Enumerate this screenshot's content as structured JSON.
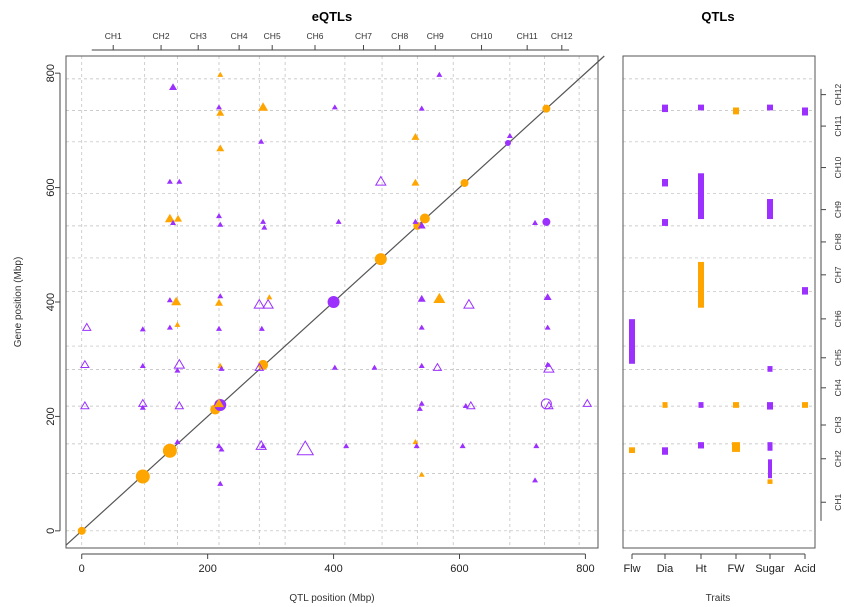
{
  "chart_data": [
    {
      "type": "scatter",
      "title": "eQTLs",
      "xlabel": "QTL position (Mbp)",
      "ylabel": "Gene position (Mbp)",
      "xlim": [
        -25,
        820
      ],
      "ylim": [
        -30,
        830
      ],
      "xticks": [
        "0",
        "200",
        "400",
        "600",
        "800"
      ],
      "yticks": [
        "0",
        "200",
        "400",
        "600",
        "800"
      ],
      "chromosomes": [
        "CH1",
        "CH2",
        "CH3",
        "CH4",
        "CH5",
        "CH6",
        "CH7",
        "CH8",
        "CH9",
        "CH10",
        "CH11",
        "CH12"
      ],
      "chrom_boundaries": [
        0,
        100,
        152,
        218,
        282,
        323,
        418,
        477,
        533,
        590,
        680,
        735,
        790
      ],
      "diagonal": true,
      "grid": true,
      "colors": {
        "purple": "#9b30ff",
        "orange": "#ffa500",
        "diagonal": "#555555",
        "grid": "#bbbbbb"
      },
      "points": [
        {
          "x": 0,
          "y": 0,
          "c": "orange",
          "s": "circle",
          "r": 4
        },
        {
          "x": 97,
          "y": 95,
          "c": "orange",
          "s": "circle",
          "r": 7
        },
        {
          "x": 140,
          "y": 140,
          "c": "orange",
          "s": "circle",
          "r": 7
        },
        {
          "x": 212,
          "y": 212,
          "c": "orange",
          "s": "circle",
          "r": 5
        },
        {
          "x": 220,
          "y": 220,
          "c": "purple",
          "s": "circle",
          "r": 6
        },
        {
          "x": 288,
          "y": 290,
          "c": "orange",
          "s": "circle",
          "r": 5
        },
        {
          "x": 400,
          "y": 400,
          "c": "purple",
          "s": "circle",
          "r": 6
        },
        {
          "x": 475,
          "y": 475,
          "c": "orange",
          "s": "circle",
          "r": 6
        },
        {
          "x": 533,
          "y": 533,
          "c": "orange",
          "s": "circle",
          "r": 4
        },
        {
          "x": 545,
          "y": 546,
          "c": "orange",
          "s": "circle",
          "r": 5
        },
        {
          "x": 608,
          "y": 608,
          "c": "orange",
          "s": "circle",
          "r": 4
        },
        {
          "x": 677,
          "y": 678,
          "c": "purple",
          "s": "circle",
          "r": 3
        },
        {
          "x": 738,
          "y": 738,
          "c": "orange",
          "s": "circle",
          "r": 4
        },
        {
          "x": 738,
          "y": 540,
          "c": "purple",
          "s": "circle",
          "r": 4
        },
        {
          "x": 145,
          "y": 775,
          "c": "purple",
          "s": "tri",
          "r": 4
        },
        {
          "x": 220,
          "y": 797,
          "c": "orange",
          "s": "tri",
          "r": 3
        },
        {
          "x": 568,
          "y": 797,
          "c": "purple",
          "s": "tri",
          "r": 3
        },
        {
          "x": 218,
          "y": 740,
          "c": "purple",
          "s": "tri",
          "r": 3
        },
        {
          "x": 220,
          "y": 730,
          "c": "orange",
          "s": "tri",
          "r": 4
        },
        {
          "x": 288,
          "y": 740,
          "c": "orange",
          "s": "tri",
          "r": 5
        },
        {
          "x": 402,
          "y": 740,
          "c": "purple",
          "s": "tri",
          "r": 3
        },
        {
          "x": 540,
          "y": 738,
          "c": "purple",
          "s": "tri",
          "r": 3
        },
        {
          "x": 530,
          "y": 688,
          "c": "orange",
          "s": "tri",
          "r": 4
        },
        {
          "x": 680,
          "y": 690,
          "c": "purple",
          "s": "tri",
          "r": 3
        },
        {
          "x": 220,
          "y": 668,
          "c": "orange",
          "s": "tri",
          "r": 4
        },
        {
          "x": 285,
          "y": 680,
          "c": "purple",
          "s": "tri",
          "r": 3
        },
        {
          "x": 140,
          "y": 610,
          "c": "purple",
          "s": "tri",
          "r": 3
        },
        {
          "x": 155,
          "y": 610,
          "c": "purple",
          "s": "tri",
          "r": 3
        },
        {
          "x": 475,
          "y": 610,
          "c": "purple",
          "s": "tri_open",
          "r": 5
        },
        {
          "x": 530,
          "y": 608,
          "c": "orange",
          "s": "tri",
          "r": 4
        },
        {
          "x": 140,
          "y": 545,
          "c": "orange",
          "s": "tri",
          "r": 5
        },
        {
          "x": 153,
          "y": 545,
          "c": "orange",
          "s": "tri",
          "r": 4
        },
        {
          "x": 145,
          "y": 538,
          "c": "purple",
          "s": "tri",
          "r": 3
        },
        {
          "x": 218,
          "y": 550,
          "c": "purple",
          "s": "tri",
          "r": 3
        },
        {
          "x": 220,
          "y": 535,
          "c": "purple",
          "s": "tri",
          "r": 3
        },
        {
          "x": 288,
          "y": 540,
          "c": "purple",
          "s": "tri",
          "r": 3
        },
        {
          "x": 290,
          "y": 530,
          "c": "purple",
          "s": "tri",
          "r": 3
        },
        {
          "x": 408,
          "y": 540,
          "c": "purple",
          "s": "tri",
          "r": 3
        },
        {
          "x": 530,
          "y": 540,
          "c": "purple",
          "s": "tri",
          "r": 3
        },
        {
          "x": 540,
          "y": 533,
          "c": "purple",
          "s": "tri",
          "r": 4
        },
        {
          "x": 720,
          "y": 538,
          "c": "purple",
          "s": "tri",
          "r": 3
        },
        {
          "x": 140,
          "y": 403,
          "c": "purple",
          "s": "tri",
          "r": 3
        },
        {
          "x": 150,
          "y": 400,
          "c": "orange",
          "s": "tri",
          "r": 5
        },
        {
          "x": 220,
          "y": 410,
          "c": "purple",
          "s": "tri",
          "r": 3
        },
        {
          "x": 218,
          "y": 398,
          "c": "orange",
          "s": "tri",
          "r": 4
        },
        {
          "x": 282,
          "y": 395,
          "c": "purple",
          "s": "tri_open",
          "r": 5
        },
        {
          "x": 296,
          "y": 395,
          "c": "purple",
          "s": "tri_open",
          "r": 5
        },
        {
          "x": 298,
          "y": 408,
          "c": "orange",
          "s": "tri",
          "r": 3
        },
        {
          "x": 540,
          "y": 405,
          "c": "purple",
          "s": "tri",
          "r": 4
        },
        {
          "x": 568,
          "y": 405,
          "c": "orange",
          "s": "tri",
          "r": 6
        },
        {
          "x": 615,
          "y": 395,
          "c": "purple",
          "s": "tri_open",
          "r": 5
        },
        {
          "x": 740,
          "y": 408,
          "c": "purple",
          "s": "tri",
          "r": 4
        },
        {
          "x": 8,
          "y": 355,
          "c": "purple",
          "s": "tri_open",
          "r": 4
        },
        {
          "x": 97,
          "y": 352,
          "c": "purple",
          "s": "tri",
          "r": 3
        },
        {
          "x": 140,
          "y": 355,
          "c": "purple",
          "s": "tri",
          "r": 3
        },
        {
          "x": 152,
          "y": 360,
          "c": "orange",
          "s": "tri",
          "r": 3
        },
        {
          "x": 218,
          "y": 353,
          "c": "purple",
          "s": "tri",
          "r": 3
        },
        {
          "x": 286,
          "y": 353,
          "c": "purple",
          "s": "tri",
          "r": 3
        },
        {
          "x": 540,
          "y": 355,
          "c": "purple",
          "s": "tri",
          "r": 3
        },
        {
          "x": 740,
          "y": 355,
          "c": "purple",
          "s": "tri",
          "r": 3
        },
        {
          "x": 5,
          "y": 290,
          "c": "purple",
          "s": "tri_open",
          "r": 4
        },
        {
          "x": 97,
          "y": 288,
          "c": "purple",
          "s": "tri",
          "r": 3
        },
        {
          "x": 155,
          "y": 290,
          "c": "purple",
          "s": "tri_open",
          "r": 5
        },
        {
          "x": 152,
          "y": 280,
          "c": "purple",
          "s": "tri",
          "r": 3
        },
        {
          "x": 220,
          "y": 288,
          "c": "orange",
          "s": "tri",
          "r": 3
        },
        {
          "x": 222,
          "y": 283,
          "c": "purple",
          "s": "tri",
          "r": 3
        },
        {
          "x": 282,
          "y": 285,
          "c": "purple",
          "s": "tri_open",
          "r": 4
        },
        {
          "x": 402,
          "y": 285,
          "c": "purple",
          "s": "tri",
          "r": 3
        },
        {
          "x": 465,
          "y": 285,
          "c": "purple",
          "s": "tri",
          "r": 3
        },
        {
          "x": 540,
          "y": 288,
          "c": "purple",
          "s": "tri",
          "r": 3
        },
        {
          "x": 565,
          "y": 285,
          "c": "purple",
          "s": "tri_open",
          "r": 4
        },
        {
          "x": 740,
          "y": 290,
          "c": "purple",
          "s": "tri",
          "r": 3
        },
        {
          "x": 742,
          "y": 283,
          "c": "purple",
          "s": "tri_open",
          "r": 5
        },
        {
          "x": 5,
          "y": 218,
          "c": "purple",
          "s": "tri_open",
          "r": 4
        },
        {
          "x": 97,
          "y": 222,
          "c": "purple",
          "s": "tri_open",
          "r": 4
        },
        {
          "x": 97,
          "y": 215,
          "c": "purple",
          "s": "tri",
          "r": 3
        },
        {
          "x": 155,
          "y": 218,
          "c": "purple",
          "s": "tri_open",
          "r": 4
        },
        {
          "x": 218,
          "y": 222,
          "c": "orange",
          "s": "tri",
          "r": 5
        },
        {
          "x": 540,
          "y": 222,
          "c": "purple",
          "s": "tri",
          "r": 3
        },
        {
          "x": 537,
          "y": 213,
          "c": "purple",
          "s": "tri",
          "r": 3
        },
        {
          "x": 610,
          "y": 218,
          "c": "purple",
          "s": "tri",
          "r": 3
        },
        {
          "x": 618,
          "y": 218,
          "c": "purple",
          "s": "tri_open",
          "r": 4
        },
        {
          "x": 738,
          "y": 222,
          "c": "purple",
          "s": "circle_open",
          "r": 5
        },
        {
          "x": 742,
          "y": 218,
          "c": "purple",
          "s": "tri_open",
          "r": 4
        },
        {
          "x": 803,
          "y": 222,
          "c": "purple",
          "s": "tri_open",
          "r": 4
        },
        {
          "x": 152,
          "y": 155,
          "c": "purple",
          "s": "tri",
          "r": 3
        },
        {
          "x": 218,
          "y": 148,
          "c": "purple",
          "s": "tri",
          "r": 3
        },
        {
          "x": 222,
          "y": 142,
          "c": "purple",
          "s": "tri",
          "r": 3
        },
        {
          "x": 285,
          "y": 148,
          "c": "purple",
          "s": "tri_open",
          "r": 5
        },
        {
          "x": 288,
          "y": 148,
          "c": "purple",
          "s": "tri",
          "r": 3
        },
        {
          "x": 355,
          "y": 142,
          "c": "purple",
          "s": "tri_open",
          "r": 8
        },
        {
          "x": 420,
          "y": 148,
          "c": "purple",
          "s": "tri",
          "r": 3
        },
        {
          "x": 530,
          "y": 155,
          "c": "orange",
          "s": "tri",
          "r": 3
        },
        {
          "x": 532,
          "y": 148,
          "c": "purple",
          "s": "tri",
          "r": 3
        },
        {
          "x": 605,
          "y": 148,
          "c": "purple",
          "s": "tri",
          "r": 3
        },
        {
          "x": 722,
          "y": 148,
          "c": "purple",
          "s": "tri",
          "r": 3
        },
        {
          "x": 540,
          "y": 98,
          "c": "orange",
          "s": "tri",
          "r": 3
        },
        {
          "x": 220,
          "y": 82,
          "c": "purple",
          "s": "tri",
          "r": 3
        },
        {
          "x": 720,
          "y": 88,
          "c": "purple",
          "s": "tri",
          "r": 3
        }
      ]
    },
    {
      "type": "bar",
      "title": "QTLs",
      "xlabel": "Traits",
      "traits": [
        "Flw",
        "Dia",
        "Ht",
        "FW",
        "Sugar",
        "Acid"
      ],
      "chromosomes": [
        "CH1",
        "CH2",
        "CH3",
        "CH4",
        "CH5",
        "CH6",
        "CH7",
        "CH8",
        "CH9",
        "CH10",
        "CH11",
        "CH12"
      ],
      "segments": [
        {
          "trait": 0,
          "c": "purple",
          "y0": 292,
          "y1": 370,
          "w": 6
        },
        {
          "trait": 0,
          "c": "orange",
          "y0": 136,
          "y1": 146,
          "w": 6
        },
        {
          "trait": 1,
          "c": "purple",
          "y0": 732,
          "y1": 745,
          "w": 6
        },
        {
          "trait": 1,
          "c": "purple",
          "y0": 602,
          "y1": 615,
          "w": 6
        },
        {
          "trait": 1,
          "c": "purple",
          "y0": 533,
          "y1": 545,
          "w": 6
        },
        {
          "trait": 1,
          "c": "orange",
          "y0": 215,
          "y1": 225,
          "w": 5
        },
        {
          "trait": 1,
          "c": "purple",
          "y0": 133,
          "y1": 146,
          "w": 6
        },
        {
          "trait": 2,
          "c": "purple",
          "y0": 735,
          "y1": 745,
          "w": 6
        },
        {
          "trait": 2,
          "c": "purple",
          "y0": 545,
          "y1": 625,
          "w": 6
        },
        {
          "trait": 2,
          "c": "orange",
          "y0": 390,
          "y1": 470,
          "w": 6
        },
        {
          "trait": 2,
          "c": "purple",
          "y0": 215,
          "y1": 225,
          "w": 5
        },
        {
          "trait": 2,
          "c": "purple",
          "y0": 144,
          "y1": 155,
          "w": 6
        },
        {
          "trait": 3,
          "c": "orange",
          "y0": 728,
          "y1": 740,
          "w": 6
        },
        {
          "trait": 3,
          "c": "orange",
          "y0": 215,
          "y1": 225,
          "w": 6
        },
        {
          "trait": 3,
          "c": "orange",
          "y0": 138,
          "y1": 155,
          "w": 8
        },
        {
          "trait": 4,
          "c": "purple",
          "y0": 735,
          "y1": 745,
          "w": 6
        },
        {
          "trait": 4,
          "c": "purple",
          "y0": 545,
          "y1": 580,
          "w": 6
        },
        {
          "trait": 4,
          "c": "purple",
          "y0": 278,
          "y1": 288,
          "w": 5
        },
        {
          "trait": 4,
          "c": "purple",
          "y0": 212,
          "y1": 225,
          "w": 6
        },
        {
          "trait": 4,
          "c": "purple",
          "y0": 140,
          "y1": 155,
          "w": 5
        },
        {
          "trait": 4,
          "c": "purple",
          "y0": 92,
          "y1": 125,
          "w": 4
        },
        {
          "trait": 4,
          "c": "orange",
          "y0": 82,
          "y1": 90,
          "w": 5
        },
        {
          "trait": 5,
          "c": "purple",
          "y0": 726,
          "y1": 740,
          "w": 6
        },
        {
          "trait": 5,
          "c": "purple",
          "y0": 413,
          "y1": 426,
          "w": 6
        },
        {
          "trait": 5,
          "c": "orange",
          "y0": 215,
          "y1": 225,
          "w": 6
        }
      ]
    }
  ]
}
